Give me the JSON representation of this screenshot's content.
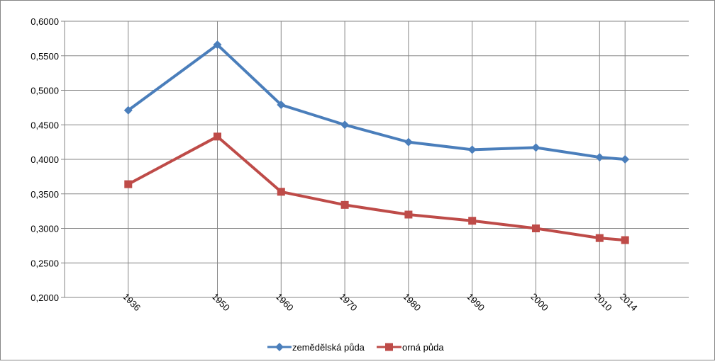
{
  "chart_data": {
    "type": "line",
    "title": "",
    "xlabel": "",
    "ylabel": "",
    "x": [
      1936,
      1950,
      1960,
      1970,
      1980,
      1990,
      2000,
      2010,
      2014
    ],
    "x_tick_labels": [
      "1936",
      "1950",
      "1960",
      "1970",
      "1980",
      "1990",
      "2000",
      "2010",
      "2014"
    ],
    "xlim": [
      1926,
      2024
    ],
    "ylim": [
      0.2,
      0.6
    ],
    "y_tick_labels": [
      "0,2000",
      "0,2500",
      "0,3000",
      "0,3500",
      "0,4000",
      "0,4500",
      "0,5000",
      "0,5500",
      "0,6000"
    ],
    "grid": true,
    "legend_position": "bottom",
    "series": [
      {
        "name": "zemědělská půda",
        "color": "#4a7ebb",
        "marker": "diamond",
        "values": [
          0.471,
          0.566,
          0.479,
          0.45,
          0.425,
          0.414,
          0.417,
          0.403,
          0.4
        ]
      },
      {
        "name": "orná půda",
        "color": "#be4b48",
        "marker": "square",
        "values": [
          0.364,
          0.433,
          0.353,
          0.334,
          0.32,
          0.311,
          0.3,
          0.286,
          0.283
        ]
      }
    ]
  }
}
